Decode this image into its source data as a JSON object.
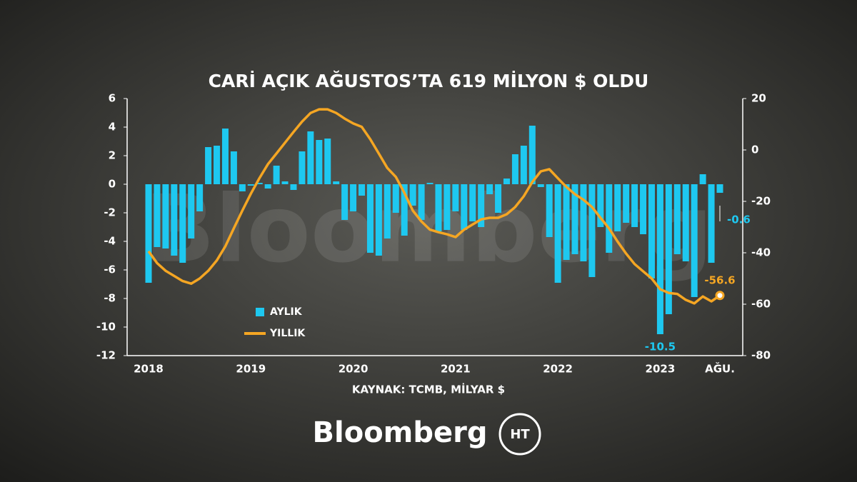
{
  "chart_data": {
    "type": "bar",
    "title": "CARİ AÇIK AĞUSTOS’TA 619 MİLYON $ OLDU",
    "source": "KAYNAK: TCMB, MİLYAR $",
    "brand": "Bloomberg",
    "brand_logo": "HT",
    "categories": [
      "2018",
      null,
      null,
      null,
      null,
      null,
      null,
      null,
      null,
      null,
      null,
      null,
      "2019",
      null,
      null,
      null,
      null,
      null,
      null,
      null,
      null,
      null,
      null,
      null,
      "2020",
      null,
      null,
      null,
      null,
      null,
      null,
      null,
      null,
      null,
      null,
      null,
      "2021",
      null,
      null,
      null,
      null,
      null,
      null,
      null,
      null,
      null,
      null,
      null,
      "2022",
      null,
      null,
      null,
      null,
      null,
      null,
      null,
      null,
      null,
      null,
      null,
      "2023",
      null,
      null,
      null,
      null,
      null,
      null,
      "AĞU."
    ],
    "series": [
      {
        "name": "AYLIK",
        "type": "bar",
        "color": "#1ec8f0",
        "values": [
          -6.9,
          -4.4,
          -4.5,
          -5.0,
          -5.5,
          -3.8,
          -1.9,
          2.6,
          2.7,
          3.9,
          2.3,
          -0.5,
          -0.1,
          0.1,
          -0.3,
          1.3,
          0.2,
          -0.4,
          2.3,
          3.7,
          3.1,
          3.2,
          0.2,
          -2.5,
          -1.9,
          -0.8,
          -4.8,
          -5.0,
          -3.8,
          -2.0,
          -3.6,
          -1.5,
          -2.5,
          0.1,
          -3.3,
          -3.2,
          -1.9,
          -3.2,
          -2.6,
          -3.0,
          -0.7,
          -2.0,
          0.4,
          2.1,
          2.7,
          4.1,
          -0.2,
          -3.7,
          -6.9,
          -5.3,
          -4.9,
          -5.4,
          -6.5,
          -3.0,
          -4.8,
          -3.3,
          -2.7,
          -3.0,
          -3.5,
          -6.6,
          -10.5,
          -9.1,
          -4.9,
          -5.4,
          -7.9,
          0.7,
          -5.5,
          -0.6
        ]
      },
      {
        "name": "YILLIK",
        "type": "line",
        "color": "#f5a623",
        "axis": "y2",
        "values": [
          -39.4,
          -44,
          -47,
          -49,
          -51,
          -52,
          -50,
          -47,
          -43,
          -37.5,
          -30.5,
          -23.6,
          -17,
          -11,
          -5.5,
          -1.4,
          2.8,
          7,
          11,
          14.4,
          15.8,
          15.8,
          14.4,
          12.2,
          10.3,
          9,
          4.2,
          -1.4,
          -7,
          -10.5,
          -16.7,
          -23.6,
          -27.8,
          -31,
          -32,
          -32.8,
          -33.9,
          -31,
          -29,
          -27,
          -26.4,
          -26.4,
          -25,
          -22.2,
          -18,
          -12.5,
          -8.3,
          -7.5,
          -11,
          -14.4,
          -17.2,
          -19.4,
          -22.2,
          -26.4,
          -30.5,
          -35.6,
          -40.3,
          -44.4,
          -47.2,
          -50,
          -54.2,
          -55.6,
          -56,
          -58.3,
          -59.7,
          -57,
          -58.9,
          -56.6
        ]
      }
    ],
    "ylim": [
      -12,
      6
    ],
    "yticks": [
      6,
      4,
      2,
      0,
      -2,
      -4,
      -6,
      -8,
      -10,
      -12
    ],
    "y2lim": [
      -80,
      20
    ],
    "y2ticks": [
      20,
      0,
      -20,
      -40,
      -60,
      -80
    ],
    "grid": false
  }
}
